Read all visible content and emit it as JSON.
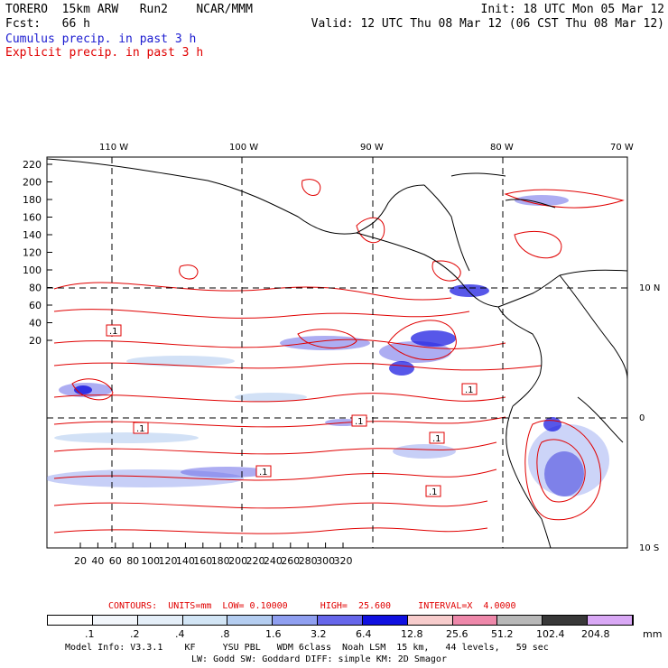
{
  "header": {
    "left_line1": "TORERO  15km ARW   Run2    NCAR/MMM",
    "left_line2": "Fcst:   66 h",
    "right_line1": "Init: 18 UTC Mon 05 Mar 12",
    "right_line2": "Valid: 12 UTC Thu 08 Mar 12 (06 CST Thu 08 Mar 12)"
  },
  "fields": {
    "cumulus": "Cumulus precip. in past 3 h",
    "explicit": "Explicit precip. in past 3 h"
  },
  "map": {
    "top_lon_labels": [
      "110 W",
      "100 W",
      "90 W",
      "80 W",
      "70 W"
    ],
    "right_lat_labels": [
      "10 N",
      "0",
      "10 S"
    ],
    "y_ticks": [
      "220",
      "200",
      "180",
      "160",
      "140",
      "120",
      "100",
      "80",
      "60",
      "40",
      "20"
    ],
    "x_ticks": [
      "20",
      "40",
      "60",
      "80",
      "100",
      "120",
      "140",
      "160",
      "180",
      "200",
      "220",
      "240",
      "260",
      "280",
      "300",
      "320"
    ],
    "contour_low_labels": [
      ".1",
      ".1",
      ".1",
      ".1",
      ".1",
      ".1",
      ".1"
    ],
    "colors": {
      "contour": "#e00000",
      "cumulus_fill": "#4a4ae0",
      "coast": "#000000"
    }
  },
  "contours_info": {
    "label": "CONTOURS:  UNITS=mm  LOW= 0.10000      HIGH=  25.600     INTERVAL=X  4.0000"
  },
  "legend": {
    "values": [
      ".1",
      ".2",
      ".4",
      ".8",
      "1.6",
      "3.2",
      "6.4",
      "12.8",
      "25.6",
      "51.2",
      "102.4",
      "204.8"
    ],
    "unit": "mm",
    "colors": [
      "#ffffff",
      "#f2f6fb",
      "#e4eef8",
      "#d2e5f5",
      "#b4cdf0",
      "#8f9ff0",
      "#6666ea",
      "#1010e0",
      "#f7cccc",
      "#ee88aa",
      "#b8b8b8",
      "#383838",
      "#d9a8f5"
    ]
  },
  "footer": {
    "line1": "Model Info: V3.3.1    KF     YSU PBL   WDM 6class  Noah LSM  15 km,   44 levels,   59 sec",
    "line2": "LW: Godd SW: Goddard DIFF: simple KM: 2D Smagor"
  }
}
